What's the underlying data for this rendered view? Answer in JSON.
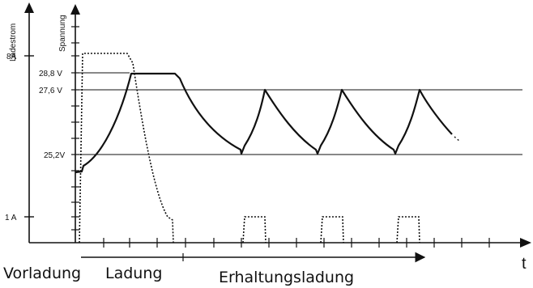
{
  "diagram": {
    "current_axis_label": "Ladestrom",
    "voltage_axis_label": "Spannung",
    "time_axis_label": "t",
    "current_ticks": [
      "8A",
      "1 A"
    ],
    "voltage_ticks": [
      "28,8 V",
      "27,6 V",
      "25,2V"
    ],
    "phases": [
      "Vorladung",
      "Ladung",
      "Erhaltungsladung"
    ]
  }
}
